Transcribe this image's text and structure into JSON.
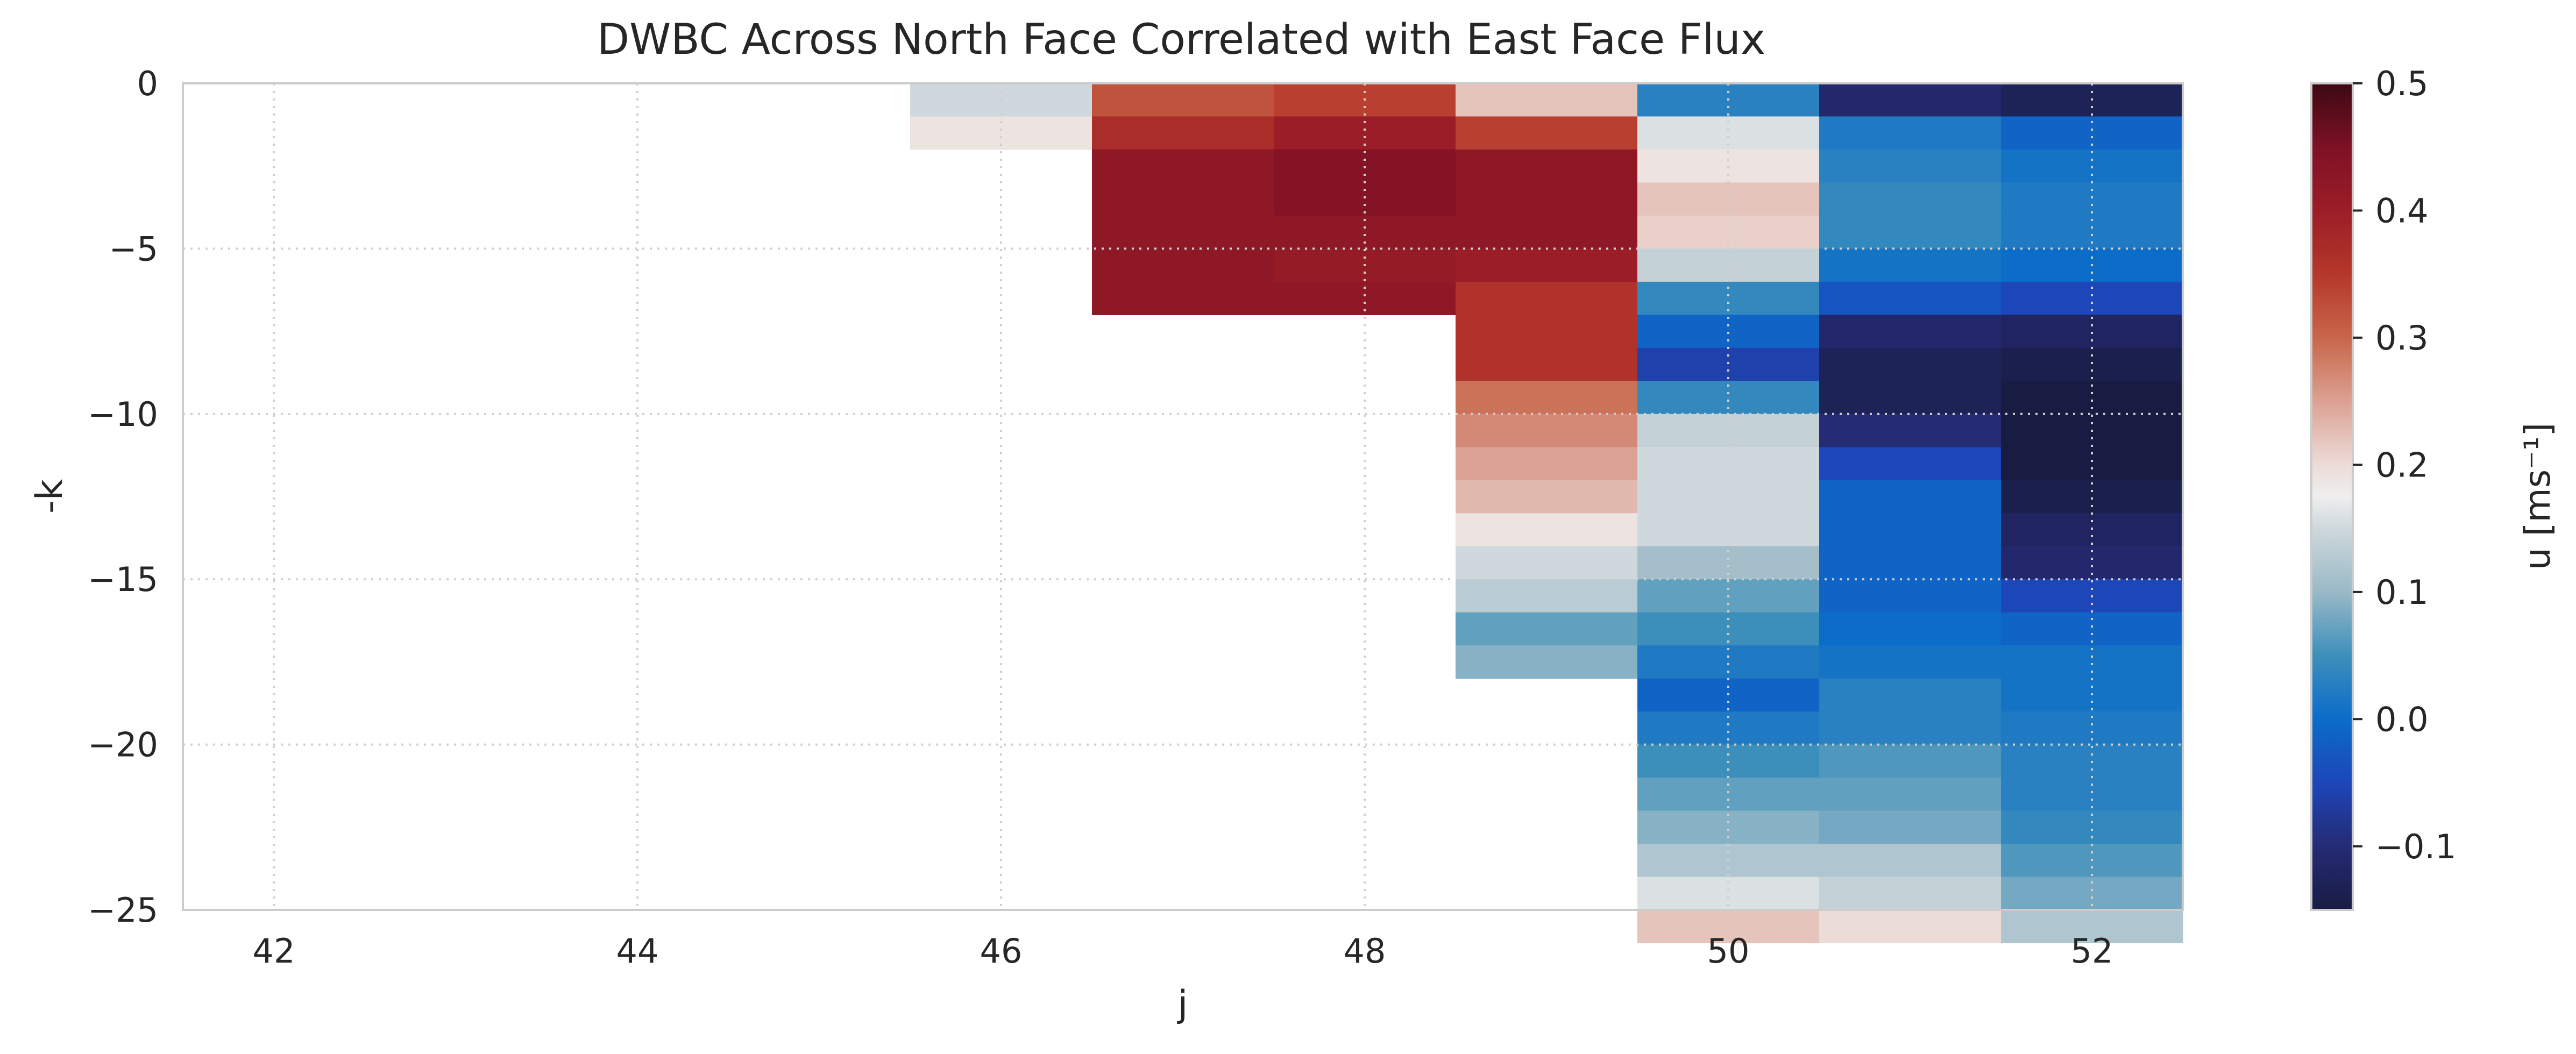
{
  "chart_data": {
    "type": "heatmap",
    "title": "DWBC Across North Face Correlated with East Face Flux",
    "xlabel": "j",
    "ylabel": "-k",
    "xlim": [
      41.5,
      52.5
    ],
    "ylim": [
      -25,
      0
    ],
    "x_ticks": [
      42,
      44,
      46,
      48,
      50,
      52
    ],
    "x_tick_labels": [
      "42",
      "44",
      "46",
      "48",
      "50",
      "52"
    ],
    "y_ticks": [
      0,
      -5,
      -10,
      -15,
      -20,
      -25
    ],
    "y_tick_labels": [
      "0",
      "−5",
      "−10",
      "−15",
      "−20",
      "−25"
    ],
    "grid": true,
    "colorbar": {
      "label": "u [ms⁻¹]",
      "vmin": -0.15,
      "vmax": 0.5,
      "ticks": [
        0.5,
        0.4,
        0.3,
        0.2,
        0.1,
        0.0,
        -0.1
      ],
      "tick_labels": [
        "0.5",
        "0.4",
        "0.3",
        "0.2",
        "0.1",
        "0.0",
        "−0.1"
      ],
      "colormap": "balance (diverging blue – white – red)",
      "stops": [
        {
          "v": -0.15,
          "c": "#181c43"
        },
        {
          "v": -0.1,
          "c": "#252b75"
        },
        {
          "v": -0.05,
          "c": "#1d46b8"
        },
        {
          "v": 0.0,
          "c": "#0b6cc9"
        },
        {
          "v": 0.05,
          "c": "#3d8fbb"
        },
        {
          "v": 0.1,
          "c": "#9ab9c6"
        },
        {
          "v": 0.15,
          "c": "#cfd8dc"
        },
        {
          "v": 0.175,
          "c": "#eeeeee"
        },
        {
          "v": 0.2,
          "c": "#ecdcd7"
        },
        {
          "v": 0.25,
          "c": "#dba192"
        },
        {
          "v": 0.3,
          "c": "#c8664a"
        },
        {
          "v": 0.35,
          "c": "#b5372b"
        },
        {
          "v": 0.4,
          "c": "#9b1d27"
        },
        {
          "v": 0.45,
          "c": "#7d1125"
        },
        {
          "v": 0.5,
          "c": "#3c0912"
        }
      ]
    },
    "columns": [
      {
        "j": 46,
        "values": [
          0.15,
          0.19
        ]
      },
      {
        "j": 47,
        "values": [
          0.32,
          0.37,
          0.42,
          0.42,
          0.42,
          0.42,
          0.42
        ]
      },
      {
        "j": 48,
        "values": [
          0.34,
          0.4,
          0.44,
          0.44,
          0.42,
          0.41,
          0.42
        ]
      },
      {
        "j": 49,
        "values": [
          0.22,
          0.34,
          0.42,
          0.42,
          0.42,
          0.4,
          0.36,
          0.36,
          0.36,
          0.29,
          0.27,
          0.25,
          0.23,
          0.19,
          0.15,
          0.13,
          0.07,
          0.09
        ]
      },
      {
        "j": 50,
        "values": [
          0.03,
          0.16,
          0.19,
          0.22,
          0.21,
          0.14,
          0.04,
          -0.01,
          -0.06,
          0.04,
          0.14,
          0.15,
          0.15,
          0.15,
          0.11,
          0.07,
          0.05,
          0.02,
          -0.01,
          0.02,
          0.05,
          0.07,
          0.09,
          0.12,
          0.16,
          0.22
        ]
      },
      {
        "j": 51,
        "values": [
          -0.11,
          0.02,
          0.03,
          0.04,
          0.04,
          0.01,
          -0.03,
          -0.11,
          -0.13,
          -0.13,
          -0.1,
          -0.05,
          -0.01,
          -0.01,
          -0.01,
          -0.01,
          0.0,
          0.01,
          0.03,
          0.03,
          0.06,
          0.07,
          0.08,
          0.12,
          0.14,
          0.2
        ]
      },
      {
        "j": 52,
        "values": [
          -0.13,
          -0.01,
          0.01,
          0.02,
          0.02,
          0.0,
          -0.05,
          -0.12,
          -0.14,
          -0.15,
          -0.15,
          -0.15,
          -0.14,
          -0.12,
          -0.11,
          -0.05,
          -0.01,
          0.01,
          0.01,
          0.02,
          0.03,
          0.03,
          0.04,
          0.06,
          0.08,
          0.12
        ]
      }
    ]
  }
}
